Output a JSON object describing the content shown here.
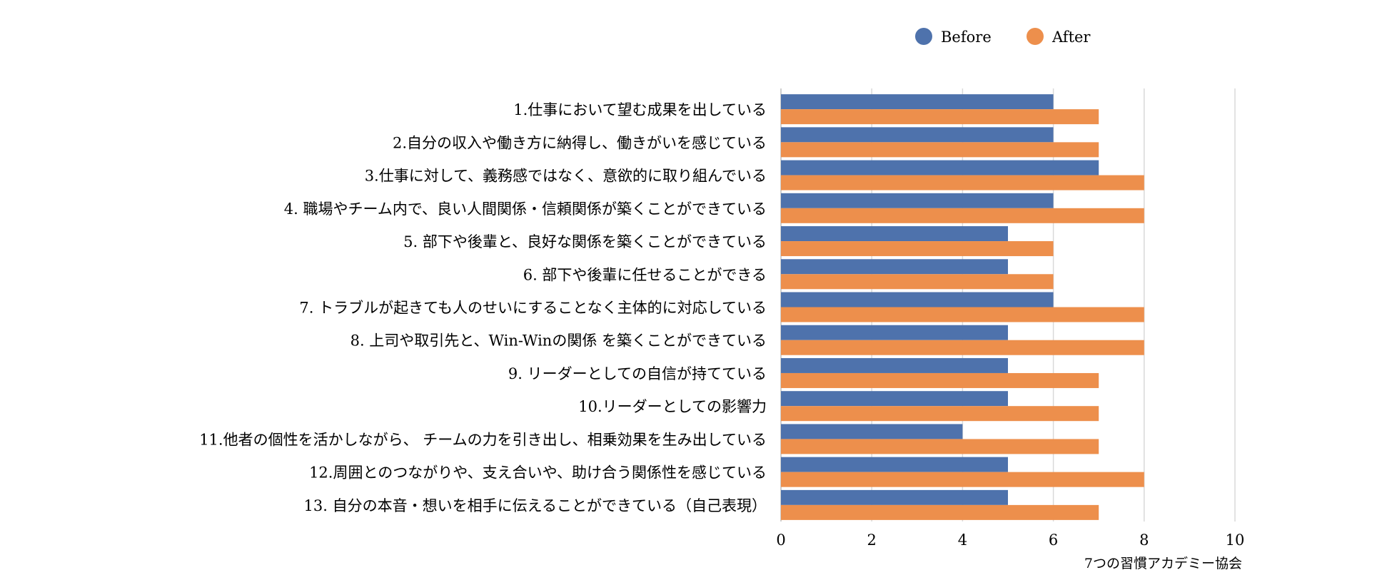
{
  "chart_data": {
    "type": "bar",
    "orientation": "horizontal",
    "categories": [
      "1.仕事において望む成果を出している",
      "2.自分の収入や働き方に納得し、働きがいを感じている",
      "3.仕事に対して、義務感ではなく、意欲的に取り組んでいる",
      "4. 職場やチーム内で、良い人間関係・信頼関係が築くことができている",
      "5. 部下や後輩と、良好な関係を築くことができている",
      "6. 部下や後輩に任せることができる",
      "7. トラブルが起きても人のせいにすることなく主体的に対応している",
      "8. 上司や取引先と、Win-Winの関係 を築くことができている",
      "9. リーダーとしての自信が持てている",
      "10.リーダーとしての影響力",
      "11.他者の個性を活かしながら、 チームの力を引き出し、相乗効果を生み出している",
      "12.周囲とのつながりや、支え合いや、助け合う関係性を感じている",
      "13. 自分の本音・想いを相手に伝えることができている（自己表現）"
    ],
    "series": [
      {
        "name": "Before",
        "color": "#4e72ac",
        "values": [
          6,
          6,
          7,
          6,
          5,
          5,
          6,
          5,
          5,
          5,
          4,
          5,
          5
        ]
      },
      {
        "name": "After",
        "color": "#ed8f4c",
        "values": [
          7,
          7,
          8,
          8,
          6,
          6,
          8,
          8,
          7,
          7,
          7,
          8,
          7
        ]
      }
    ],
    "xlim": [
      0,
      10
    ],
    "xticks": [
      "0",
      "2",
      "4",
      "6",
      "8",
      "10"
    ],
    "grid": "vertical",
    "legend_placement": "top",
    "source": "7つの習慣アカデミー協会"
  }
}
